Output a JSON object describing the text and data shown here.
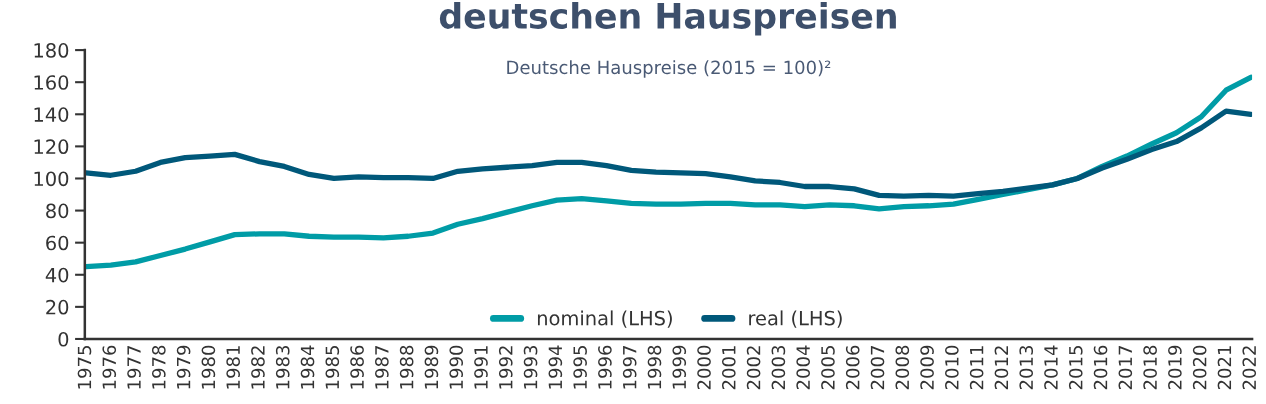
{
  "chart_data": {
    "type": "line",
    "title": "deutschen Hauspreisen",
    "subtitle": "Deutsche Hauspreise (2015 = 100)²",
    "categories": [
      "1975",
      "1976",
      "1977",
      "1978",
      "1979",
      "1980",
      "1981",
      "1982",
      "1983",
      "1984",
      "1985",
      "1986",
      "1987",
      "1988",
      "1989",
      "1990",
      "1991",
      "1992",
      "1993",
      "1994",
      "1995",
      "1996",
      "1997",
      "1998",
      "1999",
      "2000",
      "2001",
      "2002",
      "2003",
      "2004",
      "2005",
      "2006",
      "2007",
      "2008",
      "2009",
      "2010",
      "2011",
      "2012",
      "2013",
      "2014",
      "2015",
      "2016",
      "2017",
      "2018",
      "2019",
      "2020",
      "2021",
      "2022"
    ],
    "series": [
      {
        "name": "nominal (LHS)",
        "color": "#009ca6",
        "values": [
          45,
          46,
          48,
          52,
          56,
          60.5,
          65,
          65.5,
          65.5,
          64,
          63.5,
          63.5,
          63,
          64,
          66,
          71.5,
          75,
          79,
          83,
          86.5,
          87.5,
          86,
          84.5,
          84,
          84,
          84.5,
          84.5,
          83.5,
          83.5,
          82.5,
          83.5,
          83,
          81,
          82.5,
          83,
          84,
          87,
          90,
          93,
          96,
          100,
          107.5,
          114,
          121.5,
          128.5,
          138.5,
          155,
          163
        ]
      },
      {
        "name": "real (LHS)",
        "color": "#00587a",
        "values": [
          103.5,
          102,
          104.5,
          110,
          113,
          114,
          115,
          110.5,
          107.5,
          102.5,
          100,
          101,
          100.5,
          100.5,
          100,
          104.5,
          106,
          107,
          108,
          110,
          110,
          108,
          105,
          104,
          103.5,
          103,
          101,
          98.5,
          97.5,
          95,
          95,
          93.5,
          89.5,
          89,
          89.5,
          89,
          90.5,
          92,
          94,
          96,
          100,
          106.5,
          112,
          118,
          123,
          131.5,
          142,
          140
        ]
      }
    ],
    "ylim": [
      0,
      180
    ],
    "yticks": [
      0,
      20,
      40,
      60,
      80,
      100,
      120,
      140,
      160,
      180
    ],
    "grid": false,
    "legend": "bottom"
  }
}
